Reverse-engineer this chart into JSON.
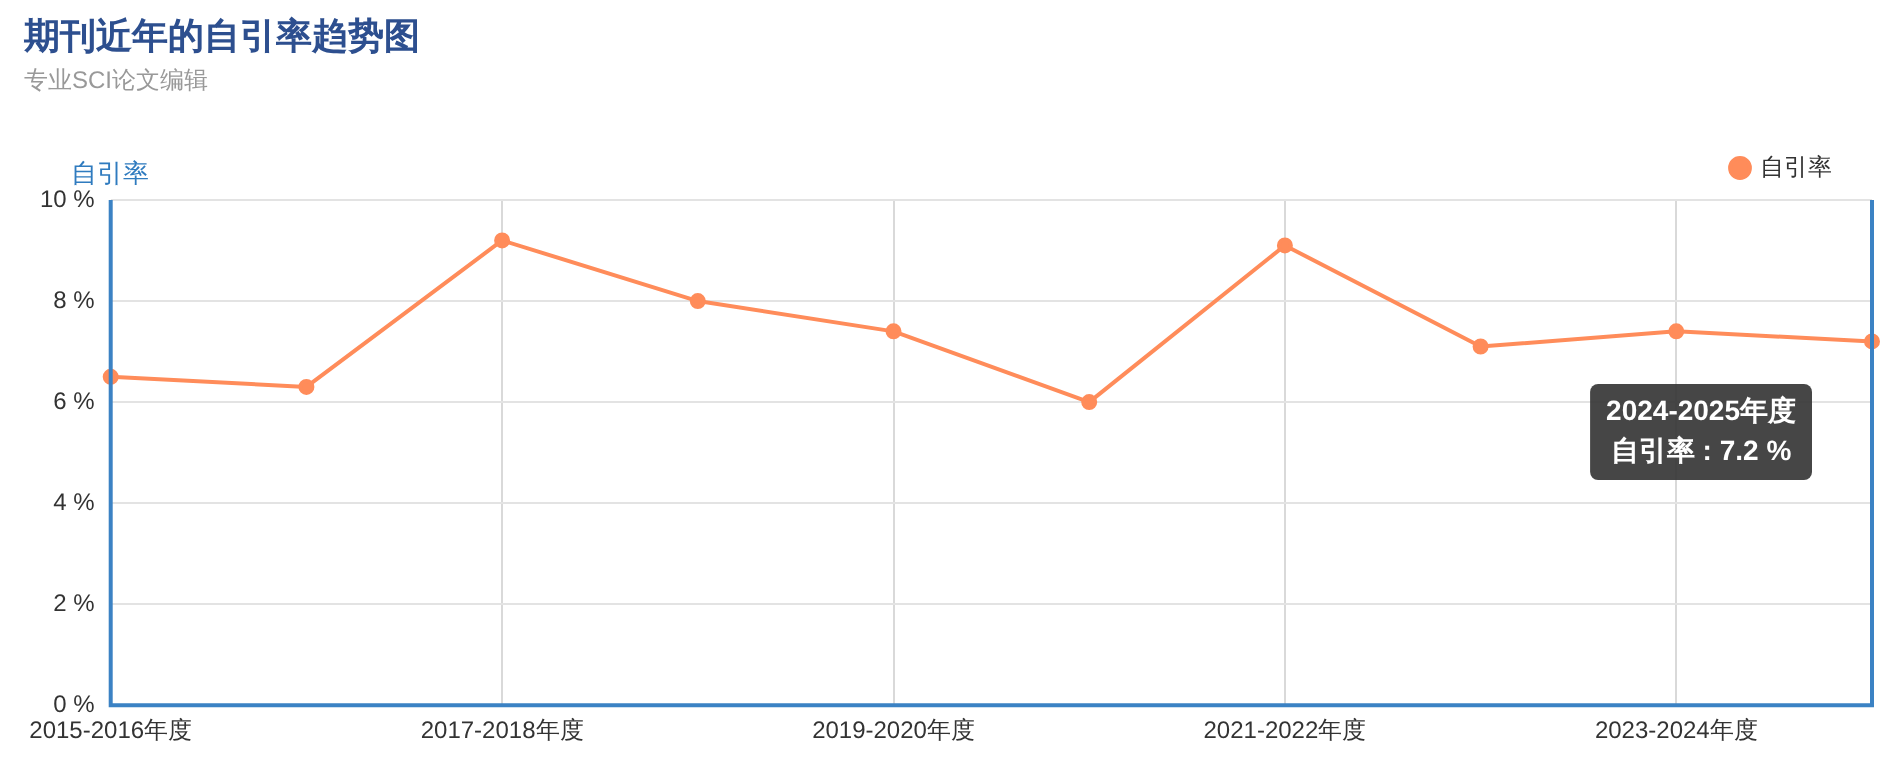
{
  "chart_data": {
    "type": "line",
    "title": "期刊近年的自引率趋势图",
    "subtitle": "专业SCI论文编辑",
    "ylabel": "自引率",
    "categories": [
      "2015-2016年度",
      null,
      "2017-2018年度",
      null,
      "2019-2020年度",
      null,
      "2021-2022年度",
      null,
      "2023-2024年度",
      null
    ],
    "series": [
      {
        "name": "自引率",
        "color": "#ff8c5a",
        "values": [
          6.5,
          6.3,
          9.2,
          8.0,
          7.4,
          6.0,
          9.1,
          7.1,
          7.4,
          7.2
        ]
      }
    ],
    "ylim": [
      0,
      10
    ],
    "yticks": [
      {
        "value": 0,
        "label": "0 %"
      },
      {
        "value": 2,
        "label": "2 %"
      },
      {
        "value": 4,
        "label": "4 %"
      },
      {
        "value": 6,
        "label": "6 %"
      },
      {
        "value": 8,
        "label": "8 %"
      },
      {
        "value": 10,
        "label": "10 %"
      }
    ],
    "grid": true,
    "legend": "top right",
    "marker": "circle",
    "line_style": "solid",
    "annotations": [
      "2024-2025年度",
      "自引率 : 7.2 %"
    ]
  }
}
